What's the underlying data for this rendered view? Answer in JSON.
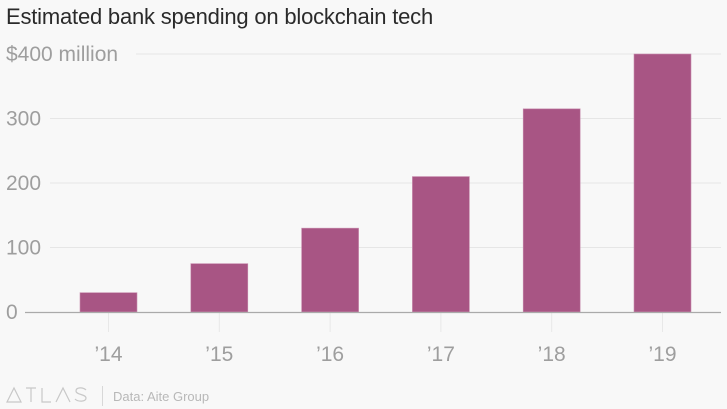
{
  "title": "Estimated bank spending on blockchain tech",
  "footer": {
    "logo": "ATLAS",
    "source": "Data: Aite Group"
  },
  "colors": {
    "bar": "#a85584",
    "gridline": "#e6e6e6",
    "axis": "#aaaaaa",
    "tick_label": "#9e9e9e",
    "background": "#f8f8f8"
  },
  "chart_data": {
    "type": "bar",
    "title": "Estimated bank spending on blockchain tech",
    "xlabel": "",
    "ylabel": "",
    "categories": [
      "’14",
      "’15",
      "’16",
      "’17",
      "’18",
      "’19"
    ],
    "values": [
      30,
      75,
      130,
      210,
      315,
      400
    ],
    "units": "$ million",
    "ylim": [
      0,
      400
    ],
    "yticks": [
      0,
      100,
      200,
      300,
      400
    ],
    "ytick_labels": [
      "0",
      "100",
      "200",
      "300",
      "$400 million"
    ],
    "grid": true,
    "legend": "none"
  }
}
